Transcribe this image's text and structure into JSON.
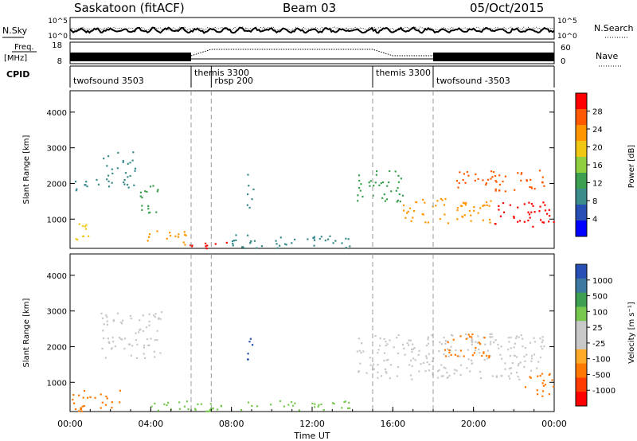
{
  "header": {
    "station": "Saskatoon (fitACF)",
    "beam": "Beam 03",
    "date": "05/Oct/2015"
  },
  "noise_panel": {
    "left_label": "N.Sky",
    "right_label": "N.Search",
    "ticks": [
      "10^5",
      "10^0"
    ]
  },
  "freq_panel": {
    "left_label_1": "Freq.",
    "left_label_2": "[MHz]",
    "left_ticks": [
      "18",
      "8"
    ],
    "right_label": "Nave",
    "right_ticks": [
      "60",
      "0"
    ]
  },
  "cpid": {
    "label": "CPID",
    "segments": [
      {
        "start_hour": 0.0,
        "name": "twofsound 3503",
        "row": 1
      },
      {
        "start_hour": 6.0,
        "name": "themis 3300",
        "row": 0
      },
      {
        "start_hour": 7.0,
        "name": "rbsp 200",
        "row": 1
      },
      {
        "start_hour": 15.0,
        "name": "themis 3300",
        "row": 0
      },
      {
        "start_hour": 18.0,
        "name": "twofsound -3503",
        "row": 1
      }
    ]
  },
  "power_panel": {
    "ylabel": "Slant Range [km]",
    "yticks": [
      1000,
      2000,
      3000,
      4000
    ],
    "colorbar_label": "Power [dB]",
    "colorbar_ticks": [
      "28",
      "24",
      "20",
      "16",
      "12",
      "8",
      "4"
    ],
    "colorbar_colors": [
      "#ff0000",
      "#ff5a00",
      "#ff9600",
      "#f0c814",
      "#90d040",
      "#3ca050",
      "#3c8c8c",
      "#2850b4",
      "#0000ff"
    ]
  },
  "velocity_panel": {
    "ylabel": "Slant Range [km]",
    "yticks": [
      1000,
      2000,
      3000,
      4000
    ],
    "colorbar_label": "Velocity [m s⁻¹]",
    "colorbar_ticks": [
      "1000",
      "500",
      "100",
      "25",
      "-25",
      "-100",
      "-500",
      "-1000"
    ],
    "colorbar_colors": [
      "#2850b4",
      "#3c78a0",
      "#3ca050",
      "#78c850",
      "#c8c8c8",
      "#c8c8c8",
      "#ffaa28",
      "#ff7800",
      "#ff3c00",
      "#ff0000"
    ]
  },
  "x_axis": {
    "label": "Time UT",
    "ticks": [
      "00:00",
      "04:00",
      "08:00",
      "12:00",
      "16:00",
      "20:00",
      "00:00"
    ]
  },
  "chart_data": {
    "type": "heatmap",
    "x_range_hours": [
      0,
      24
    ],
    "y_range_km": [
      180,
      4600
    ],
    "power_regions": [
      {
        "t0": 0.2,
        "t1": 1.4,
        "r0": 1700,
        "r1": 2150,
        "level": 8
      },
      {
        "t0": 1.6,
        "t1": 3.2,
        "r0": 1900,
        "r1": 2900,
        "level": 8
      },
      {
        "t0": 3.4,
        "t1": 4.4,
        "r0": 1200,
        "r1": 2100,
        "level": 12
      },
      {
        "t0": 0.1,
        "t1": 1.0,
        "r0": 300,
        "r1": 900,
        "level": 16
      },
      {
        "t0": 3.8,
        "t1": 5.8,
        "r0": 300,
        "r1": 700,
        "level": 20
      },
      {
        "t0": 5.8,
        "t1": 8.2,
        "r0": 200,
        "r1": 400,
        "level": 28
      },
      {
        "t0": 8.7,
        "t1": 9.1,
        "r0": 1300,
        "r1": 2300,
        "level": 8
      },
      {
        "t0": 8.0,
        "t1": 14.0,
        "r0": 200,
        "r1": 600,
        "level": 8
      },
      {
        "t0": 14.2,
        "t1": 16.5,
        "r0": 1500,
        "r1": 2400,
        "level": 12
      },
      {
        "t0": 16.5,
        "t1": 21.0,
        "r0": 900,
        "r1": 1600,
        "level": 20
      },
      {
        "t0": 19.0,
        "t1": 23.5,
        "r0": 1800,
        "r1": 2400,
        "level": 24
      },
      {
        "t0": 21.0,
        "t1": 24.0,
        "r0": 800,
        "r1": 1500,
        "level": 28
      }
    ],
    "velocity_regions": [
      {
        "t0": 1.5,
        "t1": 4.5,
        "r0": 1700,
        "r1": 3000,
        "level": 0
      },
      {
        "t0": 0.0,
        "t1": 2.5,
        "r0": 200,
        "r1": 800,
        "level": -100
      },
      {
        "t0": 8.7,
        "t1": 9.1,
        "r0": 1500,
        "r1": 2300,
        "level": 500
      },
      {
        "t0": 4.0,
        "t1": 14.0,
        "r0": 200,
        "r1": 500,
        "level": 50
      },
      {
        "t0": 14.2,
        "t1": 23.5,
        "r0": 1100,
        "r1": 2400,
        "level": 0
      },
      {
        "t0": 18.5,
        "t1": 20.8,
        "r0": 1700,
        "r1": 2400,
        "level": -100
      },
      {
        "t0": 22.5,
        "t1": 24.0,
        "r0": 600,
        "r1": 1300,
        "level": -100
      }
    ]
  }
}
